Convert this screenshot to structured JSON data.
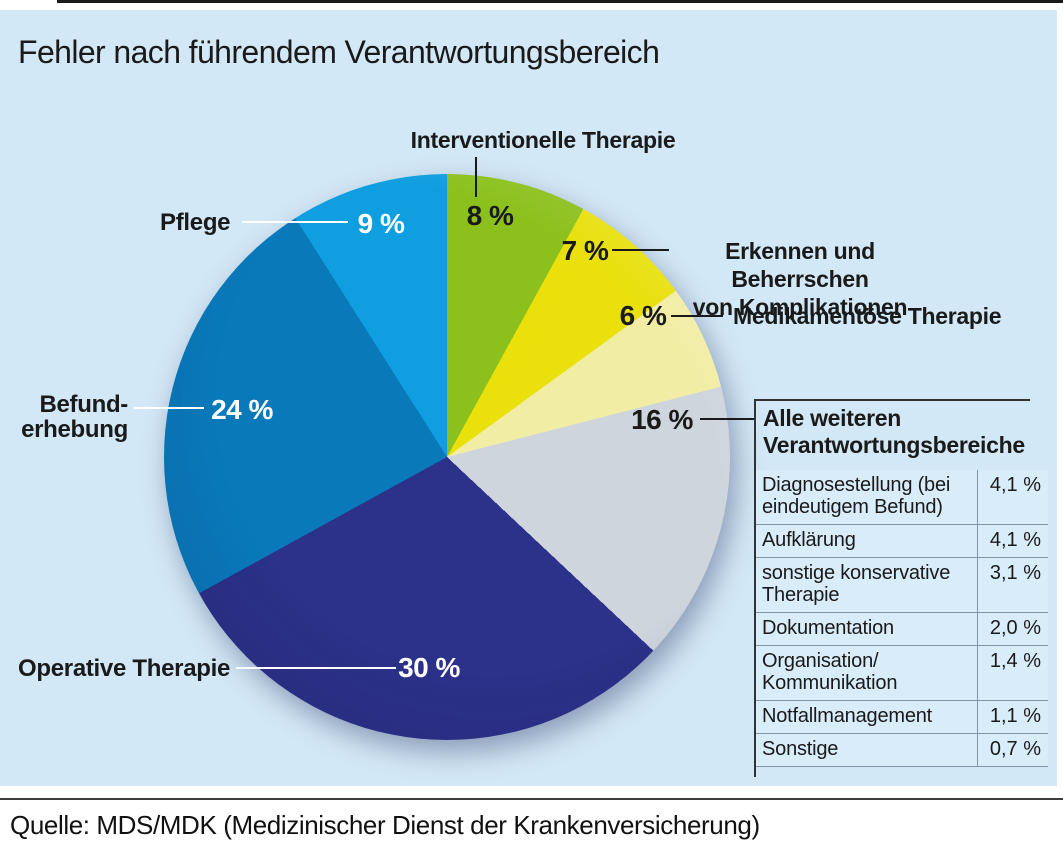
{
  "title": "Fehler nach führendem Verantwortungsbereich",
  "source_line": "Quelle: MDS/MDK (Medizinischer Dienst der Krankenversicherung)",
  "colors": {
    "panel_background": "#d3e8f6",
    "table_row_background": "#d9ecf9",
    "table_grid_line": "#7e94a7",
    "table_frame_line": "#333333",
    "text_dark": "#1a1a1a",
    "text_white": "#ffffff",
    "divider_line": "#3c3c3c"
  },
  "chart_data": {
    "type": "pie",
    "title": "Fehler nach führendem Verantwortungsbereich",
    "unit": "%",
    "direction": "clockwise",
    "start_angle_deg": 0,
    "legend_position": "callouts",
    "slices": [
      {
        "label": "Interventionelle Therapie",
        "callout_label": "Interventionelle Therapie",
        "value": 8,
        "display": "8 %",
        "color": "#8cc11d"
      },
      {
        "label": "Erkennen und Beherrschen von Komplikationen",
        "callout_label": "Erkennen und Beherrschen\nvon Komplikationen",
        "value": 7,
        "display": "7 %",
        "color": "#e9e00c"
      },
      {
        "label": "Medikamentöse Therapie",
        "callout_label": "Medikamentöse Therapie",
        "value": 6,
        "display": "6 %",
        "color": "#f2eda4"
      },
      {
        "label": "Alle weiteren Verantwortungsbereiche",
        "callout_label": "Alle weiteren\nVerantwortungsbereiche",
        "value": 16,
        "display": "16 %",
        "color": "#ced5dd"
      },
      {
        "label": "Operative Therapie",
        "callout_label": "Operative Therapie",
        "value": 30,
        "display": "30 %",
        "color": "#2c3189"
      },
      {
        "label": "Befunderhebung",
        "callout_label": "Befund-\nerhebung",
        "value": 24,
        "display": "24 %",
        "color": "#0a79ba"
      },
      {
        "label": "Pflege",
        "callout_label": "Pflege",
        "value": 9,
        "display": "9 %",
        "color": "#0f9ee0"
      }
    ]
  },
  "breakdown_table": {
    "title": "Alle weiteren\nVerantwortungsbereiche",
    "rows": [
      {
        "label": "Diagnosestellung (bei\neindeutigem Befund)",
        "value": "4,1 %"
      },
      {
        "label": "Aufklärung",
        "value": "4,1 %"
      },
      {
        "label": "sonstige konservative\nTherapie",
        "value": "3,1 %"
      },
      {
        "label": "Dokumentation",
        "value": "2,0 %"
      },
      {
        "label": "Organisation/\nKommunikation",
        "value": "1,4 %"
      },
      {
        "label": "Notfallmanagement",
        "value": "1,1 %"
      },
      {
        "label": "Sonstige",
        "value": "0,7 %"
      }
    ]
  }
}
